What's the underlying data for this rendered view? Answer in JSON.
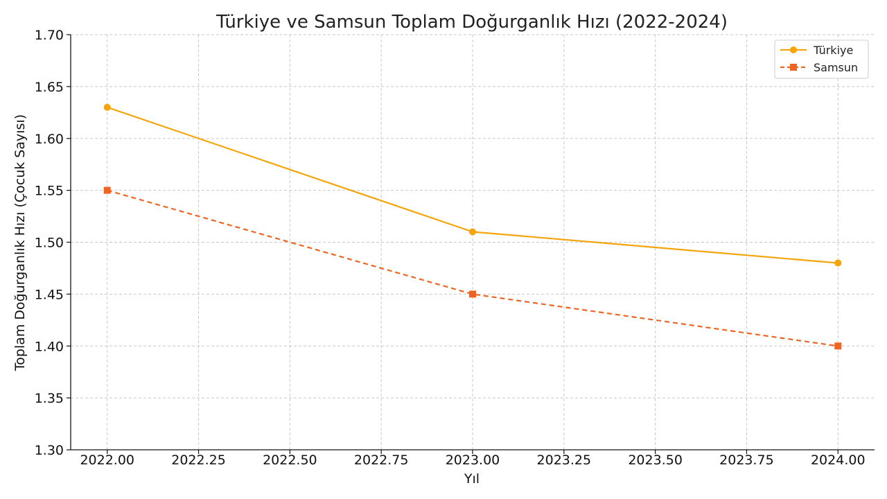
{
  "chart_data": {
    "type": "line",
    "title": "Türkiye ve Samsun Toplam Doğurganlık Hızı (2022-2024)",
    "xlabel": "Yıl",
    "ylabel": "Toplam Doğurganlık Hızı (Çocuk Sayısı)",
    "xlim": [
      2021.9,
      2024.1
    ],
    "ylim": [
      1.3,
      1.7
    ],
    "x_ticks": [
      2022.0,
      2022.25,
      2022.5,
      2022.75,
      2023.0,
      2023.25,
      2023.5,
      2023.75,
      2024.0
    ],
    "x_tick_labels": [
      "2022.00",
      "2022.25",
      "2022.50",
      "2022.75",
      "2023.00",
      "2023.25",
      "2023.50",
      "2023.75",
      "2024.00"
    ],
    "y_ticks": [
      1.3,
      1.35,
      1.4,
      1.45,
      1.5,
      1.55,
      1.6,
      1.65,
      1.7
    ],
    "y_tick_labels": [
      "1.30",
      "1.35",
      "1.40",
      "1.45",
      "1.50",
      "1.55",
      "1.60",
      "1.65",
      "1.70"
    ],
    "grid": true,
    "legend_position": "top-right",
    "x": [
      2022,
      2023,
      2024
    ],
    "series": [
      {
        "name": "Türkiye",
        "values": [
          1.63,
          1.51,
          1.48
        ],
        "color": "#F5A50A",
        "line_style": "solid",
        "marker": "circle"
      },
      {
        "name": "Samsun",
        "values": [
          1.55,
          1.45,
          1.4
        ],
        "color": "#EE6420",
        "line_style": "dashed",
        "marker": "square"
      }
    ]
  }
}
